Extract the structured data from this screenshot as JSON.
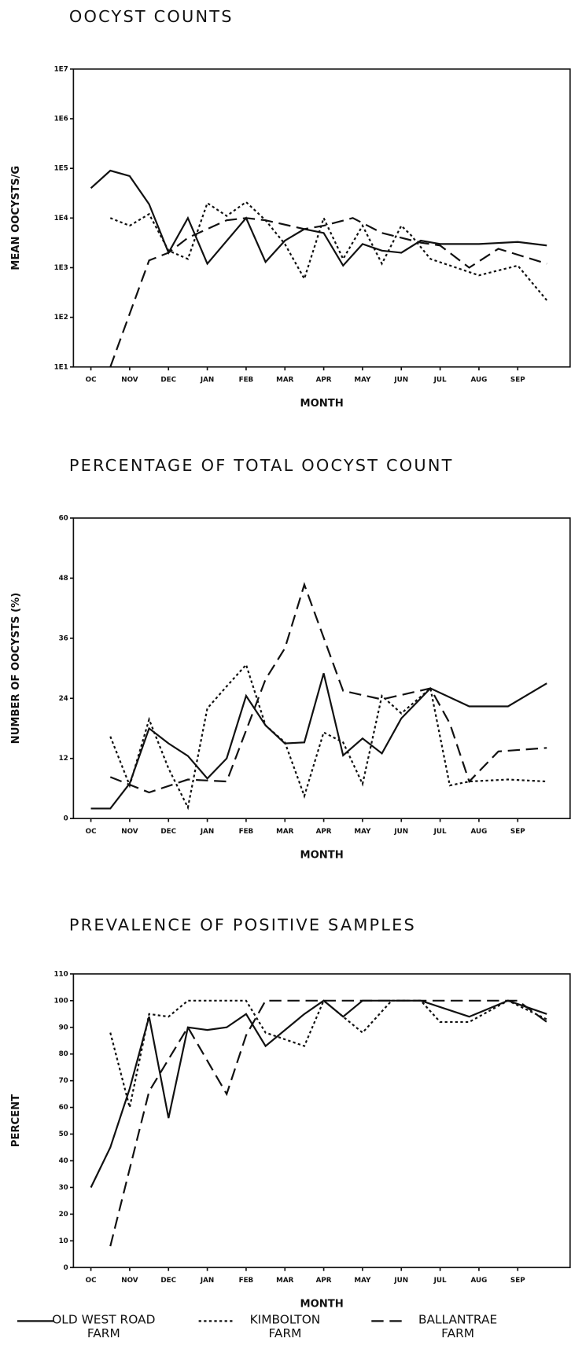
{
  "chart_data": [
    {
      "type": "line",
      "title": "OOCYST COUNTS",
      "xlabel": "MONTH",
      "ylabel": "MEAN OOCYSTS/G",
      "yscale": "log",
      "xlim": [
        -0.45,
        12.35
      ],
      "xticks": [
        {
          "value": 0,
          "label": "OC"
        },
        {
          "value": 1,
          "label": "NOV"
        },
        {
          "value": 2,
          "label": "DEC"
        },
        {
          "value": 3,
          "label": "JAN"
        },
        {
          "value": 4,
          "label": "FEB"
        },
        {
          "value": 5,
          "label": "MAR"
        },
        {
          "value": 6,
          "label": "APR"
        },
        {
          "value": 7,
          "label": "MAY"
        },
        {
          "value": 8,
          "label": "JUN"
        },
        {
          "value": 9,
          "label": "JUL"
        },
        {
          "value": 10,
          "label": "AUG"
        },
        {
          "value": 11,
          "label": "SEP"
        }
      ],
      "ylim": [
        10,
        10000000
      ],
      "yticks": [
        {
          "value": 10,
          "label": "1E1"
        },
        {
          "value": 100,
          "label": "1E2"
        },
        {
          "value": 1000,
          "label": "1E3"
        },
        {
          "value": 10000,
          "label": "1E4"
        },
        {
          "value": 100000,
          "label": "1E5"
        },
        {
          "value": 1000000,
          "label": "1E6"
        },
        {
          "value": 10000000,
          "label": "1E7"
        }
      ],
      "series": [
        {
          "color": "#111111",
          "style": "solid",
          "x": [
            0,
            0.5,
            1,
            1.5,
            2,
            2.5,
            3,
            4,
            4.5,
            5,
            5.5,
            6,
            6.5,
            7,
            7.5,
            8,
            8.5,
            9,
            10,
            11,
            11.75
          ],
          "values": [
            40000,
            90000,
            70000,
            19000,
            2000,
            10000,
            1200,
            10000,
            1300,
            3500,
            6000,
            5000,
            1100,
            3000,
            2200,
            2000,
            3500,
            3000,
            3000,
            3300,
            2800
          ]
        },
        {
          "color": "#111111",
          "style": "dotted",
          "x": [
            0.5,
            1,
            1.5,
            2,
            2.5,
            3,
            3.5,
            4,
            4.5,
            5,
            5.5,
            6,
            6.5,
            7,
            7.5,
            8,
            8.25,
            8.75,
            10,
            11,
            11.75
          ],
          "values": [
            10000,
            7000,
            12000,
            2200,
            1500,
            20000,
            11000,
            21000,
            9000,
            3000,
            600,
            10000,
            1500,
            7000,
            1200,
            7000,
            4500,
            1500,
            700,
            1100,
            220
          ]
        },
        {
          "color": "#111111",
          "style": "dashed",
          "x": [
            0.5,
            1.5,
            2,
            2.5,
            3.5,
            4,
            4.5,
            5.5,
            6,
            6.75,
            7.5,
            8.5,
            9,
            9.75,
            10.5,
            11.75
          ],
          "values": [
            10,
            1400,
            2000,
            4000,
            9000,
            10000,
            9000,
            6000,
            7000,
            10000,
            5000,
            3200,
            2800,
            1000,
            2400,
            1200
          ]
        }
      ]
    },
    {
      "type": "line",
      "title": "PERCENTAGE OF TOTAL OOCYST COUNT",
      "xlabel": "MONTH",
      "ylabel": "NUMBER OF OOCYSTS (%)",
      "xlim": [
        -0.45,
        12.35
      ],
      "xticks": [
        {
          "value": 0,
          "label": "OC"
        },
        {
          "value": 1,
          "label": "NOV"
        },
        {
          "value": 2,
          "label": "DEC"
        },
        {
          "value": 3,
          "label": "JAN"
        },
        {
          "value": 4,
          "label": "FEB"
        },
        {
          "value": 5,
          "label": "MAR"
        },
        {
          "value": 6,
          "label": "APR"
        },
        {
          "value": 7,
          "label": "MAY"
        },
        {
          "value": 8,
          "label": "JUN"
        },
        {
          "value": 9,
          "label": "JUL"
        },
        {
          "value": 10,
          "label": "AUG"
        },
        {
          "value": 11,
          "label": "SEP"
        }
      ],
      "ylim": [
        0,
        60
      ],
      "yticks": [
        0,
        12,
        24,
        36,
        48,
        60
      ],
      "series": [
        {
          "color": "#111111",
          "style": "solid",
          "x": [
            0,
            0.5,
            1,
            1.5,
            2,
            2.5,
            3,
            3.5,
            4,
            4.5,
            5,
            5.5,
            6,
            6.5,
            7,
            7.5,
            8,
            8.75,
            9.75,
            10.75,
            11.75
          ],
          "values": [
            2,
            2,
            7,
            18,
            15,
            12.5,
            8,
            12,
            24.5,
            18.6,
            15,
            15.2,
            29,
            12.6,
            16,
            13,
            20,
            26,
            22.4,
            22.4,
            27
          ]
        },
        {
          "color": "#111111",
          "style": "dotted",
          "x": [
            0.5,
            1,
            1.5,
            2,
            2.5,
            3,
            3.5,
            4,
            4.5,
            5,
            5.5,
            6,
            6.5,
            7,
            7.5,
            8,
            8.75,
            9.25,
            9.75,
            10.75,
            11.75
          ],
          "values": [
            16.4,
            6.6,
            19.8,
            10,
            2.2,
            22,
            26.4,
            30.7,
            18.6,
            15.2,
            4.5,
            17.2,
            15.2,
            6.9,
            24.5,
            21,
            26,
            6.6,
            7.4,
            7.8,
            7.4
          ]
        },
        {
          "color": "#111111",
          "style": "dashed",
          "x": [
            0.5,
            1.5,
            2.5,
            3.5,
            4.5,
            5,
            5.5,
            6.5,
            7.5,
            8.75,
            9.25,
            9.75,
            10.5,
            11.75
          ],
          "values": [
            8.3,
            5.2,
            7.8,
            7.4,
            27.8,
            34,
            46.7,
            25.5,
            23.8,
            26,
            19,
            7.4,
            13.4,
            14.1
          ]
        }
      ]
    },
    {
      "type": "line",
      "title": "PREVALENCE OF POSITIVE SAMPLES",
      "xlabel": "MONTH",
      "ylabel": "PERCENT",
      "xlim": [
        -0.45,
        12.35
      ],
      "xticks": [
        {
          "value": 0,
          "label": "OC"
        },
        {
          "value": 1,
          "label": "NOV"
        },
        {
          "value": 2,
          "label": "DEC"
        },
        {
          "value": 3,
          "label": "JAN"
        },
        {
          "value": 4,
          "label": "FEB"
        },
        {
          "value": 5,
          "label": "MAR"
        },
        {
          "value": 6,
          "label": "APR"
        },
        {
          "value": 7,
          "label": "MAY"
        },
        {
          "value": 8,
          "label": "JUN"
        },
        {
          "value": 9,
          "label": "JUL"
        },
        {
          "value": 10,
          "label": "AUG"
        },
        {
          "value": 11,
          "label": "SEP"
        }
      ],
      "ylim": [
        0,
        110
      ],
      "yticks": [
        0,
        10,
        20,
        30,
        40,
        50,
        60,
        70,
        80,
        90,
        100,
        110
      ],
      "series": [
        {
          "name": "OLD WEST ROAD FARM",
          "color": "#111111",
          "style": "solid",
          "x": [
            0,
            0.5,
            1,
            1.5,
            2,
            2.5,
            3,
            3.5,
            4,
            4.5,
            5.5,
            6,
            6.5,
            7,
            8,
            8.5,
            9.75,
            10.75,
            11.75
          ],
          "values": [
            30,
            45,
            67,
            94,
            56,
            90,
            89,
            90,
            95,
            83,
            95,
            100,
            94,
            100,
            100,
            100,
            94,
            100,
            95
          ]
        },
        {
          "name": "KIMBOLTON FARM",
          "color": "#111111",
          "style": "dotted",
          "x": [
            0.5,
            1,
            1.5,
            2,
            2.5,
            4,
            4.5,
            5.5,
            6,
            7,
            7.75,
            8.5,
            9,
            9.75,
            10.75,
            11.75
          ],
          "values": [
            88,
            60,
            95,
            94,
            100,
            100,
            88,
            83,
            100,
            88,
            100,
            100,
            92,
            92,
            100,
            93
          ]
        },
        {
          "name": "BALLANTRAE FARM",
          "color": "#111111",
          "style": "dashed",
          "x": [
            0.5,
            1.5,
            2.5,
            3.5,
            4,
            4.5,
            11,
            11.75
          ],
          "values": [
            8,
            66,
            90,
            65,
            87,
            100,
            100,
            92
          ]
        }
      ]
    }
  ]
}
